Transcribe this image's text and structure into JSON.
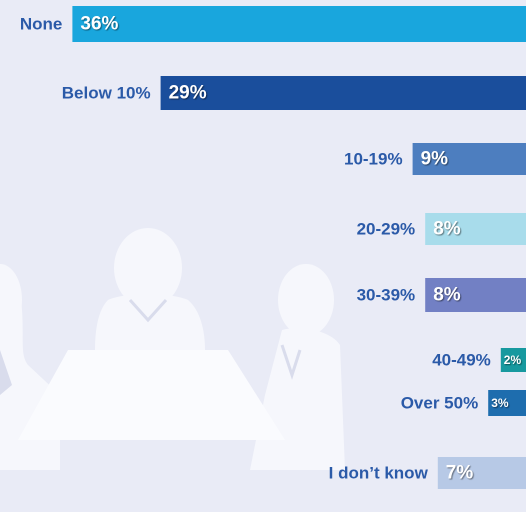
{
  "chart_data": {
    "type": "bar",
    "orientation": "horizontal",
    "categories": [
      "None",
      "Below 10%",
      "10-19%",
      "20-29%",
      "30-39%",
      "40-49%",
      "Over 50%",
      "I don’t know"
    ],
    "values": [
      36,
      29,
      9,
      8,
      8,
      2,
      3,
      7
    ],
    "value_labels": [
      "36%",
      "29%",
      "9%",
      "8%",
      "8%",
      "2%",
      "3%",
      "7%"
    ],
    "colors": [
      "#19a6dd",
      "#1a4e9c",
      "#4d7ebf",
      "#a8dceb",
      "#7280c4",
      "#17999f",
      "#1e6dae",
      "#b7c9e6"
    ]
  }
}
